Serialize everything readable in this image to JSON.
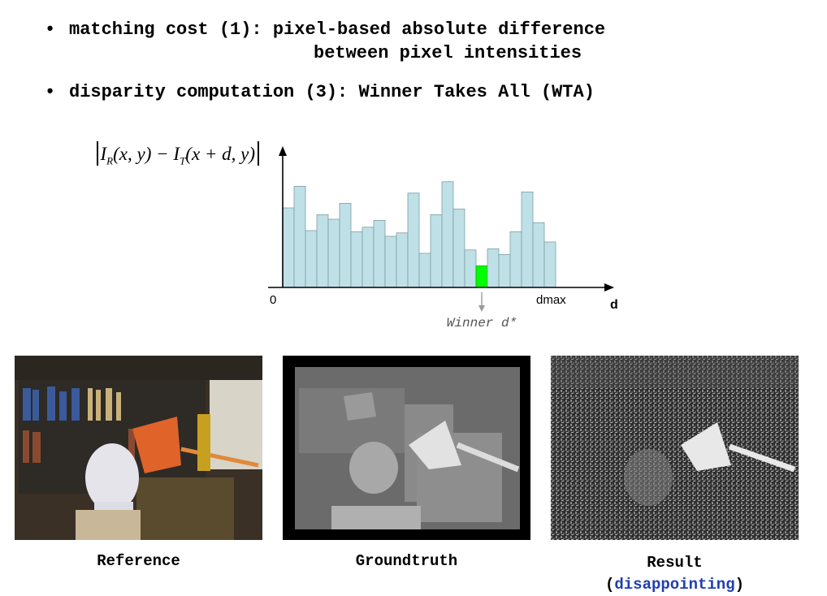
{
  "bullets": {
    "b1_dot": "•",
    "b1_line1": "matching cost (1): pixel-based absolute difference",
    "b1_line2": "between pixel intensities",
    "b2_dot": "•",
    "b2_line": "disparity computation (3): Winner Takes All (WTA)"
  },
  "formula": {
    "I": "I",
    "R": "R",
    "xy": "(x, y) − ",
    "I2": "I",
    "T": "T",
    "xdy": "(x + d, y)"
  },
  "chart_data": {
    "type": "bar",
    "title": "",
    "xlabel": "d",
    "ylabel": "",
    "tick_labels": {
      "start": "0",
      "end": "dmax"
    },
    "annotation": "Winner d*",
    "winner_index": 17,
    "colors": {
      "bar": "#bfe0e6",
      "winner": "#00ff00",
      "stroke": "#7d9ea3"
    },
    "values": [
      70,
      89,
      50,
      64,
      60,
      74,
      49,
      53,
      59,
      45,
      48,
      83,
      30,
      64,
      93,
      69,
      33,
      19,
      34,
      29,
      49,
      84,
      57,
      40
    ],
    "ylim": [
      0,
      100
    ]
  },
  "images": {
    "reference_caption": "Reference",
    "groundtruth_caption": "Groundtruth",
    "result_caption": "Result",
    "result_sub_open": "(",
    "result_sub_word": "disappointing",
    "result_sub_close": ")"
  }
}
